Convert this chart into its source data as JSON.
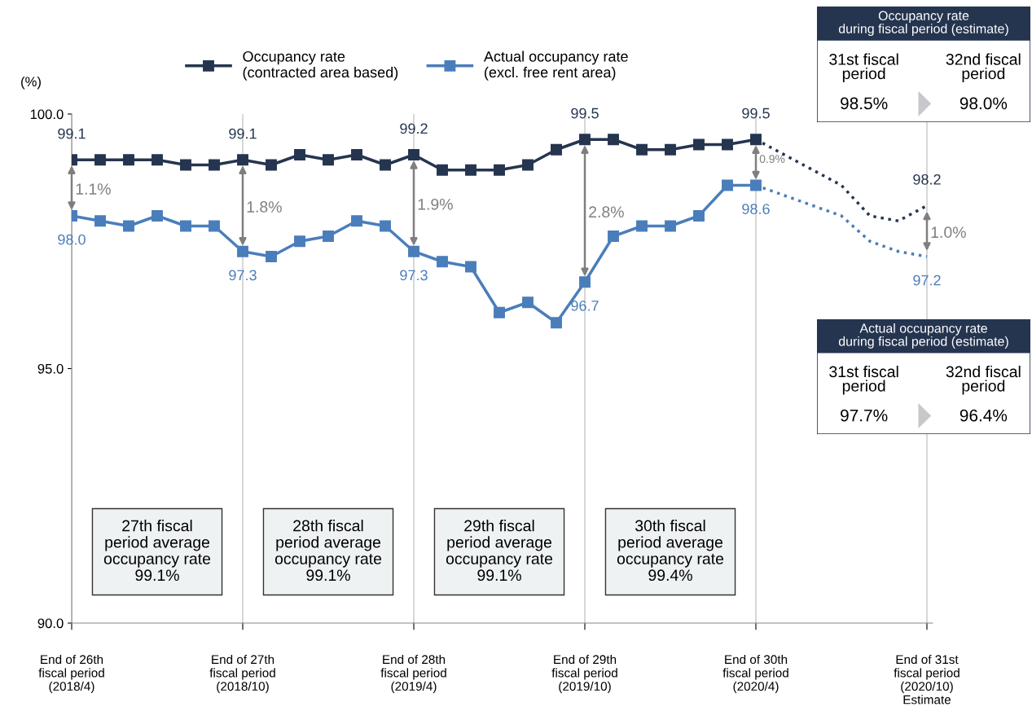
{
  "chart_data": [
    {
      "type": "line",
      "ylabel": "(%)",
      "categories": [
        "End of 26th\nfiscal period\n(2018/4)",
        null,
        null,
        null,
        null,
        null,
        "End of 27th\nfiscal period\n(2018/10)",
        null,
        null,
        null,
        null,
        null,
        "End of 28th\nfiscal period\n(2019/4)",
        null,
        null,
        null,
        null,
        null,
        "End of 29th\nfiscal period\n(2019/10)",
        null,
        null,
        null,
        null,
        null,
        "End of 30th\nfiscal period\n(2020/4)",
        null,
        null,
        null,
        null,
        null,
        "End of 31st\nfiscal period\n(2020/10)\nEstimate"
      ],
      "series": [
        {
          "name": "Occupancy rate\n(contracted area based)",
          "color": "#253550",
          "values": [
            99.1,
            99.1,
            99.1,
            99.1,
            99.0,
            99.0,
            99.1,
            99.0,
            99.2,
            99.1,
            99.2,
            99.0,
            99.2,
            98.9,
            98.9,
            98.9,
            99.0,
            99.3,
            99.5,
            99.5,
            99.3,
            99.3,
            99.4,
            99.4,
            99.5,
            null,
            null,
            null,
            null,
            null,
            null
          ],
          "value_labels": [
            "99.1",
            null,
            null,
            null,
            null,
            null,
            "99.1",
            null,
            null,
            null,
            null,
            null,
            "99.2",
            null,
            null,
            null,
            null,
            null,
            "99.5",
            null,
            null,
            null,
            null,
            null,
            "99.5",
            null,
            null,
            null,
            null,
            null,
            null
          ]
        },
        {
          "name": "Actual occupancy rate\n(excl. free rent area)",
          "color": "#4a7ebb",
          "values": [
            98.0,
            97.9,
            97.8,
            98.0,
            97.8,
            97.8,
            97.3,
            97.2,
            97.5,
            97.6,
            97.9,
            97.8,
            97.3,
            97.1,
            97.0,
            96.1,
            96.3,
            95.9,
            96.7,
            97.6,
            97.8,
            97.8,
            98.0,
            98.6,
            98.6,
            null,
            null,
            null,
            null,
            null,
            null
          ],
          "value_labels": [
            "98.0",
            null,
            null,
            null,
            null,
            null,
            "97.3",
            null,
            null,
            null,
            null,
            null,
            "97.3",
            null,
            null,
            null,
            null,
            null,
            "96.7",
            null,
            null,
            null,
            null,
            null,
            "98.6",
            null,
            null,
            null,
            null,
            null,
            null
          ]
        },
        {
          "color": "#253550",
          "marker": "none",
          "line_style": "dotted",
          "values": [
            null,
            null,
            null,
            null,
            null,
            null,
            null,
            null,
            null,
            null,
            null,
            null,
            null,
            null,
            null,
            null,
            null,
            null,
            null,
            null,
            null,
            null,
            null,
            null,
            99.5,
            99.2,
            98.9,
            98.6,
            98.0,
            97.9,
            98.2
          ],
          "value_labels": [
            null,
            null,
            null,
            null,
            null,
            null,
            null,
            null,
            null,
            null,
            null,
            null,
            null,
            null,
            null,
            null,
            null,
            null,
            null,
            null,
            null,
            null,
            null,
            null,
            null,
            null,
            null,
            null,
            null,
            null,
            "98.2"
          ]
        },
        {
          "color": "#4a7ebb",
          "marker": "none",
          "line_style": "dotted",
          "values": [
            null,
            null,
            null,
            null,
            null,
            null,
            null,
            null,
            null,
            null,
            null,
            null,
            null,
            null,
            null,
            null,
            null,
            null,
            null,
            null,
            null,
            null,
            null,
            null,
            98.6,
            98.4,
            98.2,
            98.0,
            97.5,
            97.3,
            97.2
          ],
          "value_labels": [
            null,
            null,
            null,
            null,
            null,
            null,
            null,
            null,
            null,
            null,
            null,
            null,
            null,
            null,
            null,
            null,
            null,
            null,
            null,
            null,
            null,
            null,
            null,
            null,
            null,
            null,
            null,
            null,
            null,
            null,
            "97.2"
          ]
        }
      ],
      "ylim": [
        90,
        100
      ],
      "yticks": [
        {
          "value": 90,
          "label": "90.0"
        },
        {
          "value": 95,
          "label": "95.0"
        },
        {
          "value": 100,
          "label": "100.0"
        }
      ],
      "grid": "x",
      "legend": "top",
      "marker": "square",
      "line_style": "solid",
      "annotations": [
        "1.1%",
        "1.8%",
        "1.9%",
        "2.8%",
        "0.9%",
        "1.0%",
        "27th fiscal\nperiod average\noccupancy rate\n99.1%",
        "28th fiscal\nperiod average\noccupancy rate\n99.1%",
        "29th fiscal\nperiod average\noccupancy rate\n99.1%",
        "30th fiscal\nperiod average\noccupancy rate\n99.4%"
      ]
    },
    {
      "type": "other",
      "title": "Occupancy rate\nduring fiscal period (estimate)",
      "categories": [
        "31st fiscal\nperiod",
        "32nd fiscal\nperiod"
      ],
      "value_labels": [
        "98.5%",
        "98.0%"
      ]
    },
    {
      "type": "other",
      "title": "Actual occupancy rate\nduring fiscal period (estimate)",
      "categories": [
        "31st fiscal\nperiod",
        "32nd fiscal\nperiod"
      ],
      "value_labels": [
        "97.7%",
        "96.4%"
      ]
    }
  ]
}
